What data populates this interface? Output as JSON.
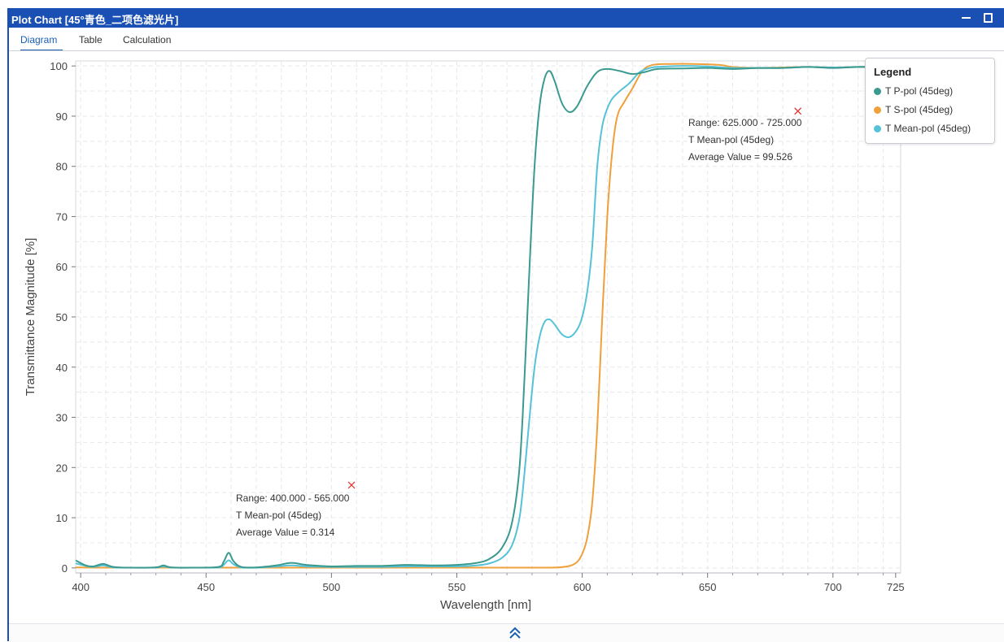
{
  "window": {
    "title": "Plot Chart [45°青色_二项色滤光片]",
    "minimize_icon": "minimize-icon",
    "maximize_icon": "maximize-icon"
  },
  "tabs": [
    {
      "label": "Diagram",
      "active": true
    },
    {
      "label": "Table",
      "active": false
    },
    {
      "label": "Calculation",
      "active": false
    }
  ],
  "legend": {
    "title": "Legend",
    "items": [
      {
        "label": "T P-pol (45deg)",
        "color": "#3a9a8f"
      },
      {
        "label": "T S-pol (45deg)",
        "color": "#f0a03a"
      },
      {
        "label": "T Mean-pol (45deg)",
        "color": "#56c2d8"
      }
    ]
  },
  "annotations": [
    {
      "lines": [
        "Range: 400.000 - 565.000",
        "T Mean-pol (45deg)",
        "Average Value = 0.314"
      ],
      "marker": {
        "x": 508,
        "y": 16.5
      }
    },
    {
      "lines": [
        "Range: 625.000 - 725.000",
        "T Mean-pol (45deg)",
        "Average Value = 99.526"
      ],
      "marker": {
        "x": 686,
        "y": 91
      }
    }
  ],
  "bottom_bar": {
    "expand_icon": "double-chevron-up-icon"
  },
  "chart_data": {
    "type": "line",
    "xlabel": "Wavelength [nm]",
    "ylabel": "Transmittance Magnitude [%]",
    "xlim": [
      398,
      727
    ],
    "ylim": [
      -1,
      101
    ],
    "xticks": [
      400,
      450,
      500,
      550,
      600,
      650,
      700,
      725
    ],
    "yticks": [
      0,
      10,
      20,
      30,
      40,
      50,
      60,
      70,
      80,
      90,
      100
    ],
    "grid": true,
    "legend_position": "top-right",
    "series": [
      {
        "name": "T P-pol (45deg)",
        "color": "#3a9a8f",
        "points": [
          [
            398,
            1.5
          ],
          [
            402,
            0.5
          ],
          [
            405,
            0.3
          ],
          [
            409,
            0.8
          ],
          [
            413,
            0.2
          ],
          [
            420,
            0.05
          ],
          [
            430,
            0.1
          ],
          [
            433,
            0.5
          ],
          [
            436,
            0.1
          ],
          [
            445,
            0.05
          ],
          [
            455,
            0.2
          ],
          [
            457,
            1.2
          ],
          [
            459,
            3.0
          ],
          [
            461,
            1.3
          ],
          [
            464,
            0.2
          ],
          [
            470,
            0.1
          ],
          [
            478,
            0.5
          ],
          [
            484,
            1.0
          ],
          [
            490,
            0.6
          ],
          [
            500,
            0.3
          ],
          [
            510,
            0.4
          ],
          [
            520,
            0.4
          ],
          [
            530,
            0.6
          ],
          [
            540,
            0.5
          ],
          [
            550,
            0.6
          ],
          [
            558,
            1.0
          ],
          [
            563,
            1.8
          ],
          [
            568,
            4
          ],
          [
            572,
            9
          ],
          [
            575,
            20
          ],
          [
            577,
            38
          ],
          [
            579,
            60
          ],
          [
            581,
            80
          ],
          [
            583,
            92
          ],
          [
            585,
            97.5
          ],
          [
            587,
            99
          ],
          [
            589,
            97
          ],
          [
            592,
            92.5
          ],
          [
            595,
            90.8
          ],
          [
            598,
            92
          ],
          [
            602,
            96
          ],
          [
            606,
            98.8
          ],
          [
            610,
            99.4
          ],
          [
            615,
            99
          ],
          [
            620,
            98.4
          ],
          [
            625,
            98.8
          ],
          [
            630,
            99.4
          ],
          [
            640,
            99.5
          ],
          [
            650,
            99.6
          ],
          [
            660,
            99.4
          ],
          [
            670,
            99.6
          ],
          [
            680,
            99.6
          ],
          [
            690,
            99.8
          ],
          [
            700,
            99.6
          ],
          [
            710,
            99.8
          ],
          [
            720,
            99.8
          ],
          [
            727,
            99.9
          ]
        ]
      },
      {
        "name": "T S-pol (45deg)",
        "color": "#f0a03a",
        "points": [
          [
            398,
            0.1
          ],
          [
            410,
            0.05
          ],
          [
            450,
            0.05
          ],
          [
            500,
            0.05
          ],
          [
            550,
            0.05
          ],
          [
            580,
            0.05
          ],
          [
            590,
            0.1
          ],
          [
            595,
            0.4
          ],
          [
            598,
            1.2
          ],
          [
            600,
            2.8
          ],
          [
            602,
            6
          ],
          [
            604,
            13
          ],
          [
            606,
            28
          ],
          [
            608,
            50
          ],
          [
            610,
            70
          ],
          [
            612,
            83
          ],
          [
            614,
            90
          ],
          [
            617,
            93
          ],
          [
            620,
            95.5
          ],
          [
            624,
            99
          ],
          [
            628,
            100.2
          ],
          [
            635,
            100.4
          ],
          [
            645,
            100.4
          ],
          [
            655,
            100.2
          ],
          [
            660,
            99.8
          ],
          [
            670,
            99.6
          ],
          [
            680,
            99.7
          ],
          [
            690,
            99.8
          ],
          [
            700,
            99.7
          ],
          [
            710,
            99.8
          ],
          [
            720,
            99.8
          ],
          [
            727,
            99.9
          ]
        ]
      },
      {
        "name": "T Mean-pol (45deg)",
        "color": "#56c2d8",
        "points": [
          [
            398,
            0.9
          ],
          [
            402,
            0.4
          ],
          [
            405,
            0.2
          ],
          [
            409,
            0.5
          ],
          [
            413,
            0.1
          ],
          [
            420,
            0.05
          ],
          [
            430,
            0.1
          ],
          [
            433,
            0.3
          ],
          [
            436,
            0.1
          ],
          [
            445,
            0.05
          ],
          [
            455,
            0.1
          ],
          [
            457,
            0.6
          ],
          [
            459,
            1.5
          ],
          [
            461,
            0.7
          ],
          [
            464,
            0.1
          ],
          [
            470,
            0.05
          ],
          [
            478,
            0.3
          ],
          [
            484,
            0.5
          ],
          [
            490,
            0.3
          ],
          [
            500,
            0.2
          ],
          [
            510,
            0.2
          ],
          [
            520,
            0.2
          ],
          [
            530,
            0.3
          ],
          [
            540,
            0.3
          ],
          [
            550,
            0.3
          ],
          [
            558,
            0.5
          ],
          [
            563,
            0.9
          ],
          [
            568,
            2
          ],
          [
            572,
            4.5
          ],
          [
            575,
            10
          ],
          [
            577,
            19
          ],
          [
            579,
            30
          ],
          [
            581,
            40
          ],
          [
            583,
            46
          ],
          [
            585,
            49
          ],
          [
            587,
            49.5
          ],
          [
            589,
            48.5
          ],
          [
            592,
            46.5
          ],
          [
            595,
            46
          ],
          [
            598,
            47.5
          ],
          [
            600,
            50
          ],
          [
            602,
            55
          ],
          [
            604,
            64
          ],
          [
            606,
            80
          ],
          [
            608,
            88
          ],
          [
            610,
            91.5
          ],
          [
            612,
            93.5
          ],
          [
            615,
            95
          ],
          [
            618,
            96.2
          ],
          [
            620,
            97.2
          ],
          [
            623,
            98.8
          ],
          [
            627,
            99.6
          ],
          [
            630,
            99.8
          ],
          [
            640,
            100.0
          ],
          [
            650,
            99.9
          ],
          [
            660,
            99.6
          ],
          [
            670,
            99.6
          ],
          [
            680,
            99.6
          ],
          [
            690,
            99.8
          ],
          [
            700,
            99.7
          ],
          [
            710,
            99.8
          ],
          [
            720,
            99.8
          ],
          [
            727,
            99.9
          ]
        ]
      }
    ]
  }
}
